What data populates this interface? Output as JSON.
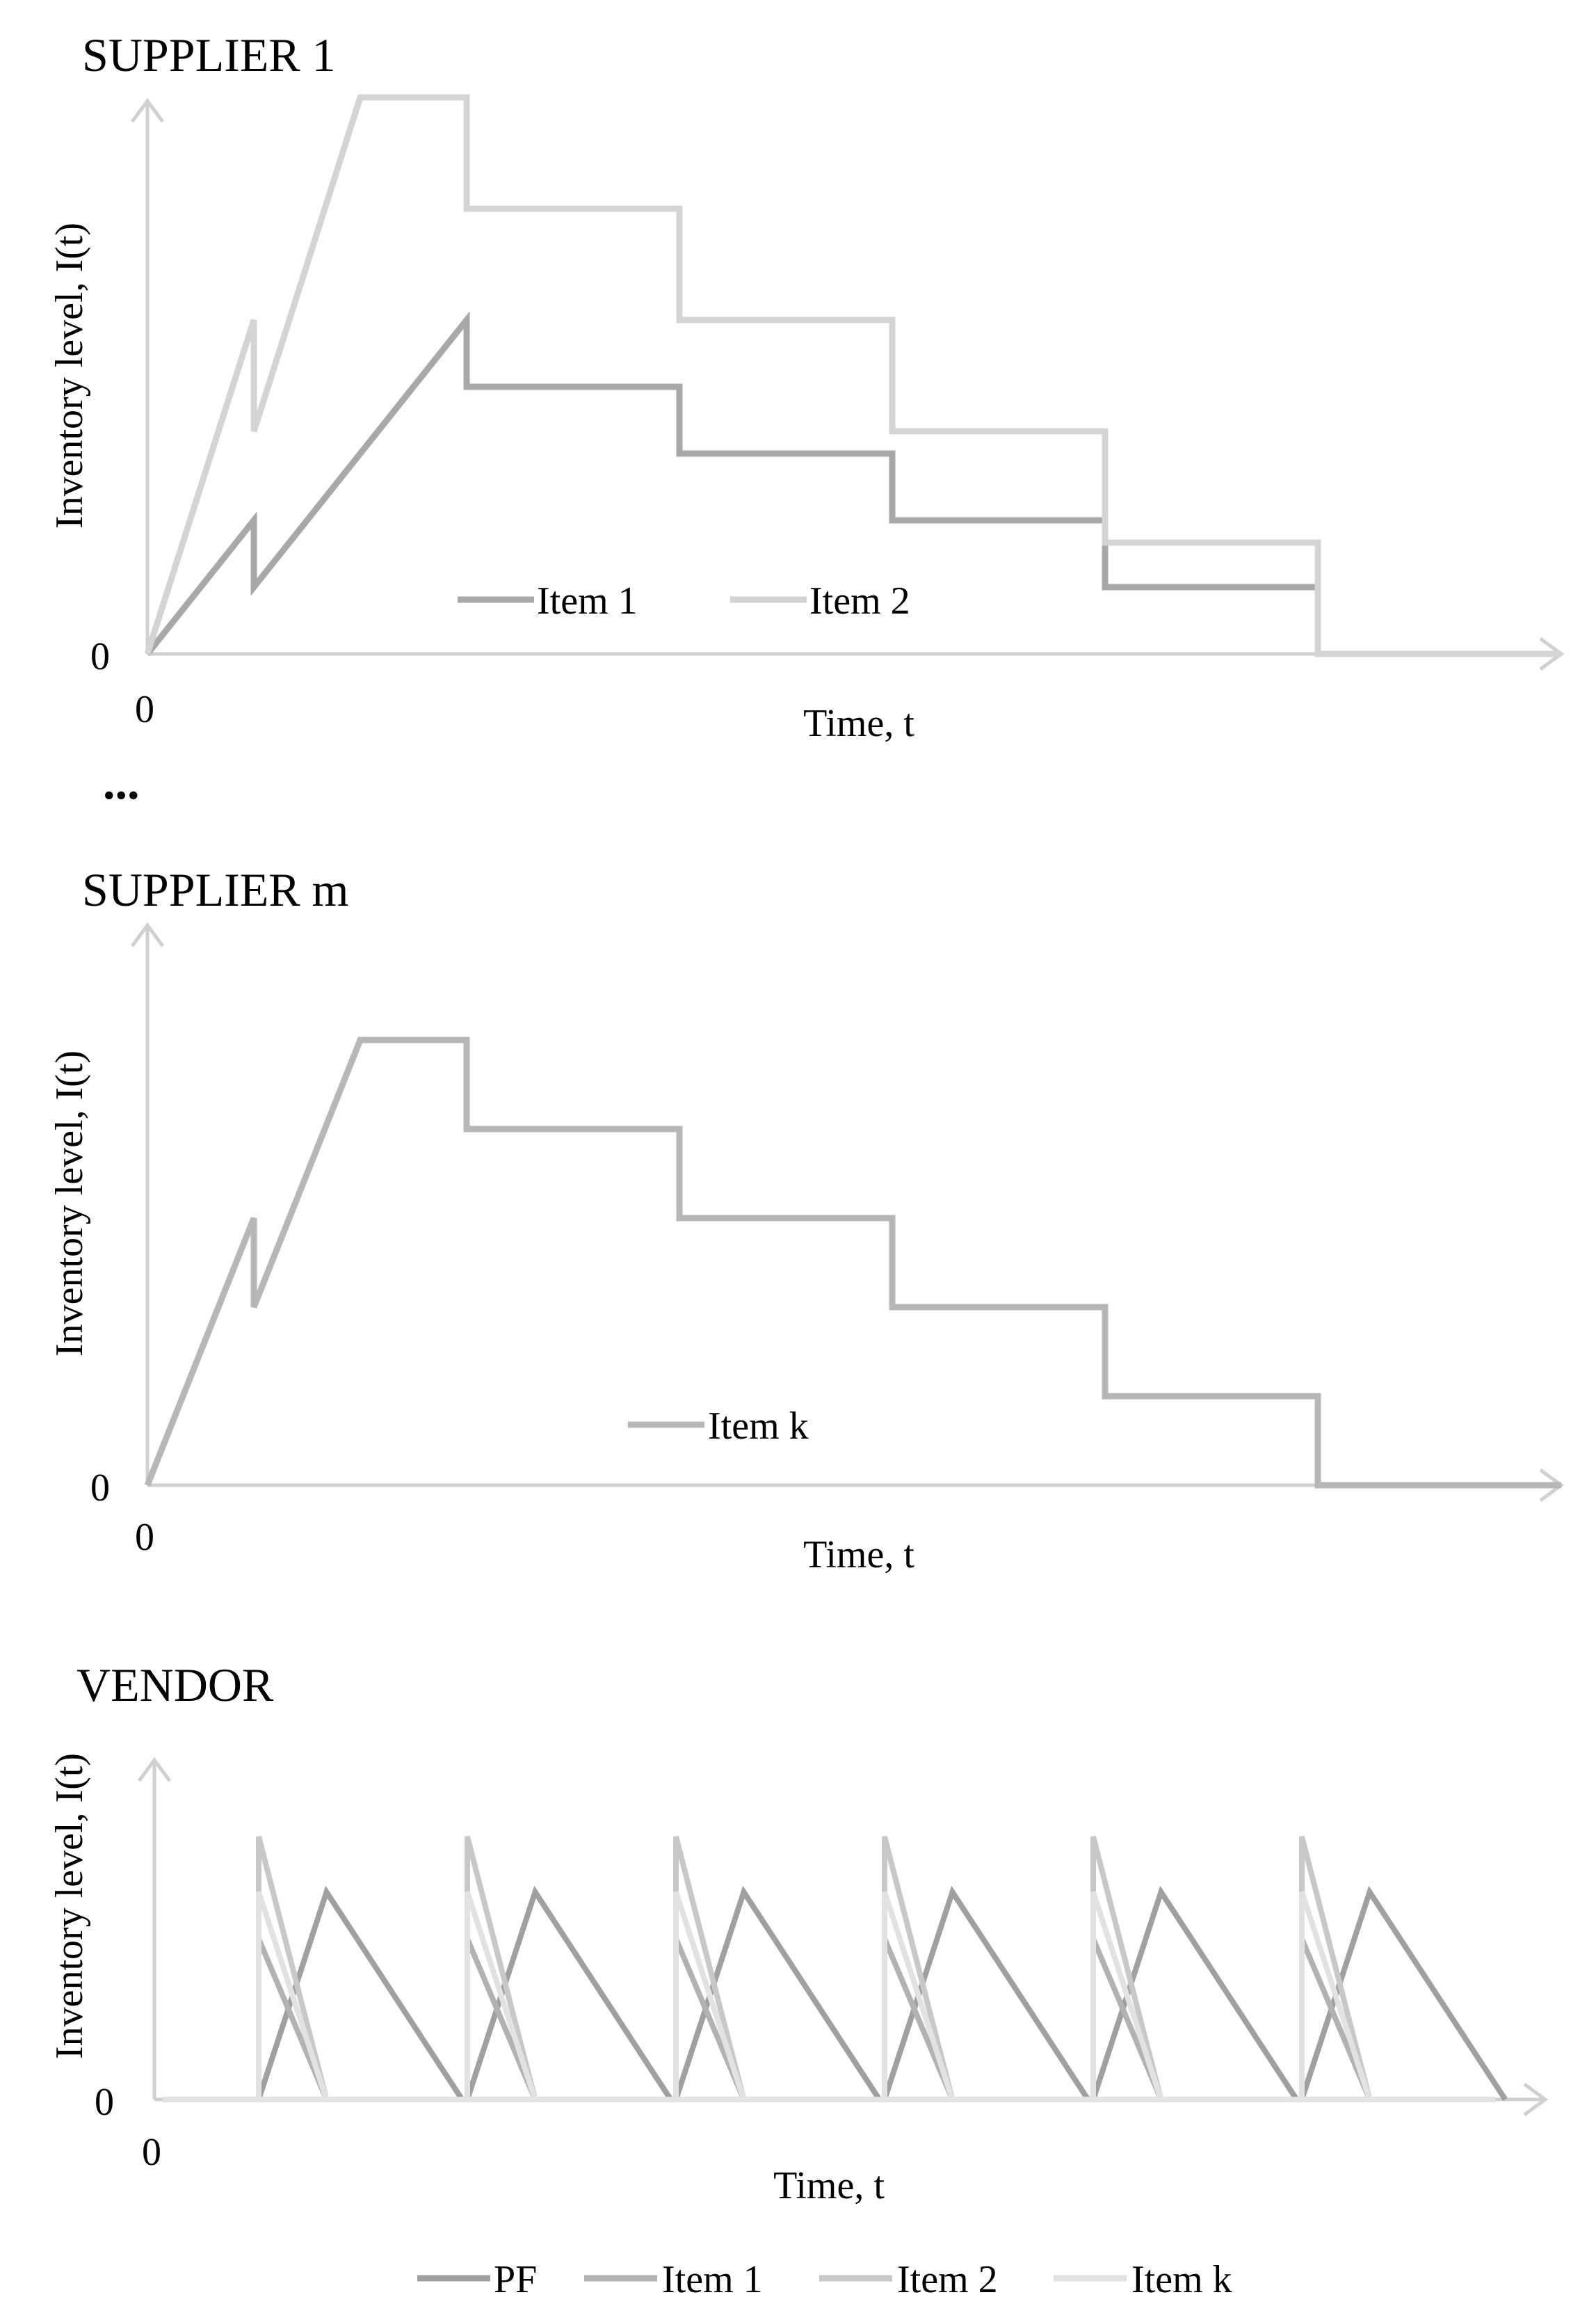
{
  "colors": {
    "axis": "#d0d0d0",
    "item1": "#a8a8a8",
    "item2": "#d4d4d4",
    "itemk": "#b7b7b7",
    "pf": "#a0a0a0",
    "vendor_item1": "#b2b2b2",
    "vendor_item2": "#c8c8c8",
    "vendor_itemk": "#e2e2e2"
  },
  "separator": "...",
  "chart_data": [
    {
      "type": "line",
      "title": "SUPPLIER 1",
      "xlabel": "Time, t",
      "ylabel": "Inventory level, I(t)",
      "x_tick_label": "0",
      "y_tick_label": "0",
      "xlim": [
        0,
        13
      ],
      "ylim": [
        0,
        50
      ],
      "series": [
        {
          "name": "Item 1",
          "color_key": "item1",
          "x": [
            0,
            1,
            1,
            3,
            3,
            5,
            5,
            7,
            7,
            9,
            9,
            11
          ],
          "y": [
            0,
            12,
            6,
            30,
            24,
            24,
            18,
            18,
            12,
            12,
            6,
            6
          ]
        },
        {
          "name": "Item 2",
          "color_key": "item2",
          "x": [
            0,
            1,
            1,
            2,
            3,
            3,
            5,
            5,
            7,
            7,
            9,
            9,
            11,
            11,
            13
          ],
          "y": [
            0,
            30,
            20,
            50,
            50,
            40,
            40,
            30,
            30,
            20,
            20,
            10,
            10,
            0,
            0
          ]
        }
      ]
    },
    {
      "type": "line",
      "title": "SUPPLIER m",
      "xlabel": "Time, t",
      "ylabel": "Inventory level, I(t)",
      "x_tick_label": "0",
      "y_tick_label": "0",
      "xlim": [
        0,
        13
      ],
      "ylim": [
        0,
        50
      ],
      "series": [
        {
          "name": "Item k",
          "color_key": "itemk",
          "x": [
            0,
            1,
            1,
            2,
            3,
            3,
            5,
            5,
            7,
            7,
            9,
            9,
            11,
            11,
            13
          ],
          "y": [
            0,
            30,
            20,
            50,
            50,
            40,
            40,
            30,
            30,
            20,
            20,
            10,
            10,
            0,
            0
          ]
        }
      ]
    },
    {
      "type": "line",
      "title": "VENDOR",
      "xlabel": "Time, t",
      "ylabel": "Inventory level, I(t)",
      "x_tick_label": "0",
      "y_tick_label": "0",
      "xlim": [
        0,
        13
      ],
      "ylim": [
        0,
        100
      ],
      "cycle_starts": [
        1,
        3,
        5,
        7,
        9,
        11
      ],
      "cycle_length": 2,
      "series": [
        {
          "name": "PF",
          "color_key": "pf",
          "cycle_shape": {
            "dx": [
              0,
              0.65,
              1.95
            ],
            "dy": [
              0,
              71,
              0
            ]
          }
        },
        {
          "name": "Item 1",
          "color_key": "vendor_item1",
          "cycle_shape": {
            "dx": [
              0,
              0,
              0.65
            ],
            "dy": [
              0,
              55,
              0
            ]
          }
        },
        {
          "name": "Item 2",
          "color_key": "vendor_item2",
          "cycle_shape": {
            "dx": [
              0,
              0,
              0.65
            ],
            "dy": [
              0,
              90,
              0
            ]
          }
        },
        {
          "name": "Item k",
          "color_key": "vendor_itemk",
          "cycle_shape": {
            "dx": [
              0,
              0,
              0.65
            ],
            "dy": [
              0,
              71,
              0
            ]
          }
        }
      ]
    }
  ]
}
